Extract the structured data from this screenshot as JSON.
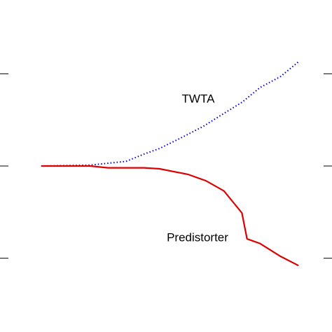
{
  "chart_data": {
    "type": "line",
    "series": [
      {
        "name": "TWTA",
        "color": "#0000cc",
        "style": "dotted",
        "x": [
          0,
          0.19,
          0.33,
          0.4,
          0.46,
          0.54,
          0.63,
          0.71,
          0.78,
          0.85,
          0.93,
          1.0
        ],
        "values": [
          0,
          0.01,
          0.05,
          0.13,
          0.19,
          0.3,
          0.43,
          0.57,
          0.69,
          0.85,
          0.97,
          1.13
        ]
      },
      {
        "name": "Predistorter",
        "color": "#dd0000",
        "style": "solid",
        "x": [
          0,
          0.19,
          0.26,
          0.4,
          0.46,
          0.57,
          0.64,
          0.71,
          0.78,
          0.8,
          0.85,
          0.93,
          1.0
        ],
        "values": [
          0,
          0,
          -0.02,
          -0.02,
          -0.03,
          -0.09,
          -0.16,
          -0.27,
          -0.51,
          -0.79,
          -0.84,
          -0.98,
          -1.08
        ]
      }
    ],
    "xlim": [
      -0.16,
      1.13
    ],
    "ylim": [
      -1.8,
      1.8
    ],
    "yticks": [
      -1,
      0,
      1
    ]
  }
}
